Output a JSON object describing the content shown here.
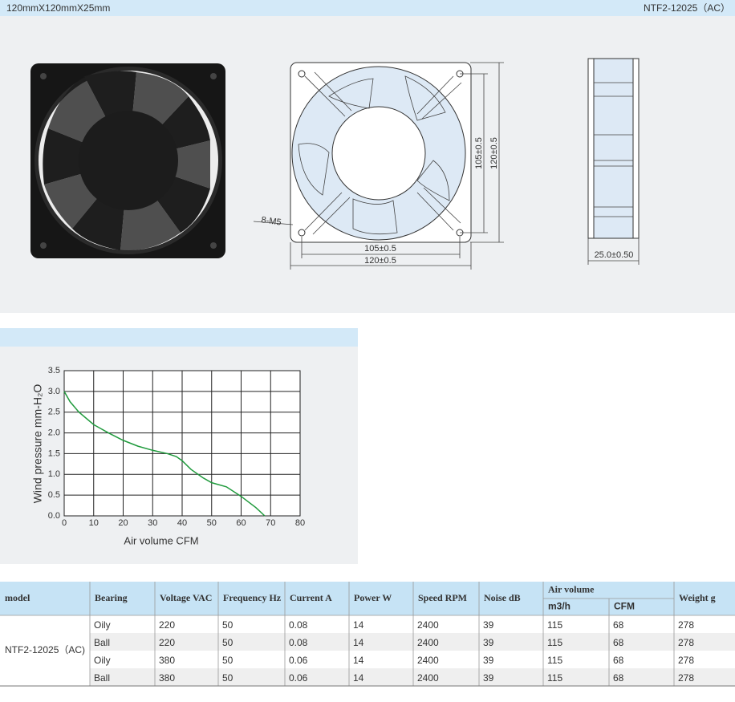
{
  "header": {
    "size": "120mmX120mmX25mm",
    "model": "NTF2-12025（AC）"
  },
  "drawing": {
    "holes": "8-M5",
    "inner_height": "105±0.5",
    "outer_height": "120±0.5",
    "inner_width": "105±0.5",
    "outer_width": "120±0.5",
    "depth": "25.0±0.50"
  },
  "chart_data": {
    "type": "line",
    "ylabel": "Wind  pressure  mm-H₂O",
    "xlabel": "Air volume CFM",
    "x": [
      0,
      2,
      5,
      10,
      15,
      20,
      25,
      30,
      35,
      38,
      40,
      43,
      47,
      50,
      55,
      60,
      65,
      68
    ],
    "series": [
      {
        "color": "#1f9a3c",
        "values": [
          3.0,
          2.75,
          2.5,
          2.2,
          2.0,
          1.82,
          1.68,
          1.58,
          1.5,
          1.43,
          1.33,
          1.12,
          0.92,
          0.8,
          0.7,
          0.47,
          0.2,
          0.0
        ]
      }
    ],
    "xlim": [
      0,
      80
    ],
    "ylim": [
      0,
      3.5
    ],
    "xticks": [
      0,
      10,
      20,
      30,
      40,
      50,
      60,
      70,
      80
    ],
    "yticks": [
      {
        "value": 0,
        "label": "0.0"
      },
      0.5,
      {
        "value": 1,
        "label": "1.0"
      },
      1.5,
      {
        "value": 2,
        "label": "2.0"
      },
      2.5,
      {
        "value": 3,
        "label": "3.0"
      },
      3.5
    ],
    "grid": true
  },
  "table": {
    "headers": [
      "model",
      "Bearing",
      "Voltage VAC",
      "Frequency Hz",
      "Current A",
      "Power W",
      "Speed RPM",
      "Noise dB",
      "Air volume",
      "Weight g"
    ],
    "subheaders": [
      "m3/h",
      "CFM"
    ],
    "model": "NTF2-12025（AC)",
    "rows": [
      [
        "Oily",
        220,
        50,
        0.08,
        14,
        2400,
        39,
        115,
        68,
        278
      ],
      [
        "Ball",
        220,
        50,
        0.08,
        14,
        2400,
        39,
        115,
        68,
        278
      ],
      [
        "Oily",
        380,
        50,
        0.06,
        14,
        2400,
        39,
        115,
        68,
        278
      ],
      [
        "Ball",
        380,
        50,
        0.06,
        14,
        2400,
        39,
        115,
        68,
        278
      ]
    ]
  }
}
